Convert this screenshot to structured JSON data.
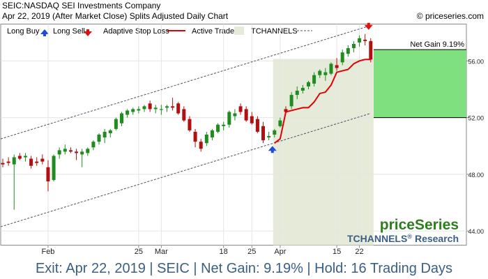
{
  "header": {
    "title": "SEIC:NASDAQ SEI Investments Company",
    "subtitle": "Apr 22, 2019 (After Market Close)  Splits Adjusted Daily Chart",
    "copyright": "© priceseries.com"
  },
  "legend": {
    "long_buy": "Long Buy",
    "long_sell": "Long Sell",
    "adaptive_stop": "Adaptive Stop Loss",
    "active_trade": "Active Trade",
    "tchannels": "TCHANNELS"
  },
  "branding": {
    "logo": "priceSeries",
    "research": "TCHANNELS",
    "research_suffix": "Research",
    "registered": "®"
  },
  "gain_box": {
    "label": "Net Gain 9.19%"
  },
  "footer": "Exit: Apr 22, 2019 | SEIC | Net Gain: 9.19% | Hold: 16 Trading Days",
  "colors": {
    "bull": "#1e8c1e",
    "bear": "#b01010",
    "stop": "#e00000",
    "buy_arrow": "#1a4fd6",
    "sell_arrow": "#e01010",
    "active_bg": "#e6ead9",
    "gain_fill": "#7ee07e",
    "channel": "#445566",
    "footer_text": "#3a5f86"
  },
  "chart_data": {
    "type": "candlestick",
    "ylim": [
      43.0,
      58.6
    ],
    "y_ticks": [
      "44.00",
      "48.00",
      "52.00",
      "56.00"
    ],
    "y_tick_values": [
      44,
      48,
      52,
      56
    ],
    "x_ticks": [
      {
        "label": "Feb",
        "index": 8
      },
      {
        "label": "25",
        "index": 24
      },
      {
        "label": "Mar",
        "index": 28
      },
      {
        "label": "18",
        "index": 39
      },
      {
        "label": "25",
        "index": 44
      },
      {
        "label": "Apr",
        "index": 49
      },
      {
        "label": "15",
        "index": 59
      },
      {
        "label": "22",
        "index": 63
      }
    ],
    "candles": [
      {
        "o": 48.8,
        "h": 49.1,
        "l": 48.5,
        "c": 48.7
      },
      {
        "o": 48.9,
        "h": 49.2,
        "l": 48.6,
        "c": 48.8
      },
      {
        "o": 48.7,
        "h": 49.4,
        "l": 45.5,
        "c": 49.2
      },
      {
        "o": 49.3,
        "h": 49.5,
        "l": 49.0,
        "c": 49.1
      },
      {
        "o": 49.2,
        "h": 49.5,
        "l": 48.9,
        "c": 49.3
      },
      {
        "o": 49.1,
        "h": 49.3,
        "l": 48.4,
        "c": 48.6
      },
      {
        "o": 48.9,
        "h": 49.2,
        "l": 48.6,
        "c": 48.8
      },
      {
        "o": 49.1,
        "h": 49.4,
        "l": 48.7,
        "c": 48.9
      },
      {
        "o": 48.5,
        "h": 49.0,
        "l": 46.8,
        "c": 47.5
      },
      {
        "o": 47.6,
        "h": 49.4,
        "l": 47.5,
        "c": 49.3
      },
      {
        "o": 49.4,
        "h": 49.9,
        "l": 49.1,
        "c": 49.7
      },
      {
        "o": 49.6,
        "h": 50.1,
        "l": 49.4,
        "c": 49.8
      },
      {
        "o": 49.7,
        "h": 49.9,
        "l": 49.5,
        "c": 49.6
      },
      {
        "o": 49.6,
        "h": 49.8,
        "l": 49.0,
        "c": 49.5
      },
      {
        "o": 49.4,
        "h": 49.8,
        "l": 48.5,
        "c": 49.6
      },
      {
        "o": 49.5,
        "h": 49.9,
        "l": 49.3,
        "c": 49.8
      },
      {
        "o": 49.9,
        "h": 50.4,
        "l": 49.7,
        "c": 50.3
      },
      {
        "o": 50.3,
        "h": 50.9,
        "l": 50.1,
        "c": 50.8
      },
      {
        "o": 50.6,
        "h": 51.2,
        "l": 50.2,
        "c": 51.0
      },
      {
        "o": 50.9,
        "h": 51.2,
        "l": 50.6,
        "c": 51.1
      },
      {
        "o": 51.2,
        "h": 52.0,
        "l": 51.1,
        "c": 51.9
      },
      {
        "o": 51.6,
        "h": 52.4,
        "l": 51.4,
        "c": 52.3
      },
      {
        "o": 52.2,
        "h": 52.6,
        "l": 52.0,
        "c": 52.5
      },
      {
        "o": 52.4,
        "h": 52.7,
        "l": 52.2,
        "c": 52.6
      },
      {
        "o": 52.5,
        "h": 52.8,
        "l": 52.3,
        "c": 52.6
      },
      {
        "o": 52.6,
        "h": 52.9,
        "l": 52.4,
        "c": 52.8
      },
      {
        "o": 53.0,
        "h": 53.2,
        "l": 52.4,
        "c": 52.6
      },
      {
        "o": 52.6,
        "h": 52.9,
        "l": 52.3,
        "c": 52.7
      },
      {
        "o": 52.6,
        "h": 52.9,
        "l": 52.2,
        "c": 52.6
      },
      {
        "o": 52.7,
        "h": 52.9,
        "l": 52.4,
        "c": 52.8
      },
      {
        "o": 52.8,
        "h": 53.4,
        "l": 52.5,
        "c": 52.7
      },
      {
        "o": 53.0,
        "h": 53.1,
        "l": 52.2,
        "c": 52.3
      },
      {
        "o": 52.6,
        "h": 52.8,
        "l": 51.7,
        "c": 51.8
      },
      {
        "o": 51.9,
        "h": 52.1,
        "l": 51.0,
        "c": 51.1
      },
      {
        "o": 51.0,
        "h": 51.2,
        "l": 49.9,
        "c": 50.3
      },
      {
        "o": 50.3,
        "h": 50.5,
        "l": 49.6,
        "c": 49.8
      },
      {
        "o": 50.2,
        "h": 51.0,
        "l": 50.0,
        "c": 50.8
      },
      {
        "o": 50.6,
        "h": 51.2,
        "l": 50.4,
        "c": 51.1
      },
      {
        "o": 51.0,
        "h": 51.6,
        "l": 50.9,
        "c": 51.5
      },
      {
        "o": 51.4,
        "h": 51.7,
        "l": 51.1,
        "c": 51.5
      },
      {
        "o": 51.5,
        "h": 52.5,
        "l": 51.3,
        "c": 52.4
      },
      {
        "o": 52.1,
        "h": 52.6,
        "l": 51.8,
        "c": 52.3
      },
      {
        "o": 52.8,
        "h": 53.0,
        "l": 52.2,
        "c": 52.4
      },
      {
        "o": 52.6,
        "h": 52.8,
        "l": 51.7,
        "c": 51.8
      },
      {
        "o": 52.1,
        "h": 52.4,
        "l": 51.5,
        "c": 51.6
      },
      {
        "o": 51.9,
        "h": 52.1,
        "l": 50.9,
        "c": 51.0
      },
      {
        "o": 51.4,
        "h": 51.7,
        "l": 50.2,
        "c": 50.4
      },
      {
        "o": 50.6,
        "h": 51.0,
        "l": 50.4,
        "c": 50.7
      },
      {
        "o": 50.8,
        "h": 51.2,
        "l": 50.6,
        "c": 51.1
      },
      {
        "o": 51.4,
        "h": 52.0,
        "l": 51.3,
        "c": 51.8
      },
      {
        "o": 52.6,
        "h": 52.8,
        "l": 52.3,
        "c": 52.4
      },
      {
        "o": 52.8,
        "h": 53.8,
        "l": 52.6,
        "c": 53.6
      },
      {
        "o": 53.6,
        "h": 54.2,
        "l": 53.3,
        "c": 53.9
      },
      {
        "o": 53.9,
        "h": 54.3,
        "l": 53.7,
        "c": 54.1
      },
      {
        "o": 54.2,
        "h": 54.6,
        "l": 54.0,
        "c": 54.5
      },
      {
        "o": 54.4,
        "h": 55.2,
        "l": 54.2,
        "c": 55.0
      },
      {
        "o": 55.0,
        "h": 55.4,
        "l": 54.8,
        "c": 55.3
      },
      {
        "o": 55.0,
        "h": 55.5,
        "l": 54.6,
        "c": 55.2
      },
      {
        "o": 55.1,
        "h": 55.9,
        "l": 55.0,
        "c": 55.8
      },
      {
        "o": 55.7,
        "h": 56.2,
        "l": 55.3,
        "c": 55.5
      },
      {
        "o": 55.9,
        "h": 56.8,
        "l": 55.7,
        "c": 56.6
      },
      {
        "o": 56.5,
        "h": 57.1,
        "l": 56.3,
        "c": 56.9
      },
      {
        "o": 56.9,
        "h": 57.4,
        "l": 56.6,
        "c": 57.2
      },
      {
        "o": 57.3,
        "h": 57.8,
        "l": 57.0,
        "c": 57.6
      },
      {
        "o": 57.5,
        "h": 57.9,
        "l": 57.1,
        "c": 57.4
      },
      {
        "o": 57.4,
        "h": 57.6,
        "l": 55.9,
        "c": 56.1
      }
    ],
    "stop_loss": [
      {
        "i": 48,
        "v": 50.2
      },
      {
        "i": 49,
        "v": 50.5
      },
      {
        "i": 50,
        "v": 52.4
      },
      {
        "i": 51,
        "v": 52.5
      },
      {
        "i": 52,
        "v": 52.6
      },
      {
        "i": 53,
        "v": 52.7
      },
      {
        "i": 54,
        "v": 52.7
      },
      {
        "i": 55,
        "v": 53.1
      },
      {
        "i": 56,
        "v": 53.7
      },
      {
        "i": 57,
        "v": 53.8
      },
      {
        "i": 58,
        "v": 54.3
      },
      {
        "i": 59,
        "v": 55.2
      },
      {
        "i": 60,
        "v": 55.3
      },
      {
        "i": 61,
        "v": 55.4
      },
      {
        "i": 62,
        "v": 55.8
      },
      {
        "i": 63,
        "v": 56.0
      },
      {
        "i": 64,
        "v": 56.1
      },
      {
        "i": 65,
        "v": 56.1
      }
    ],
    "channel_upper": [
      {
        "i": 0,
        "v": 50.5
      },
      {
        "i": 65,
        "v": 58.5
      }
    ],
    "channel_lower": [
      {
        "i": 0,
        "v": 44.3
      },
      {
        "i": 65,
        "v": 52.3
      }
    ],
    "active_trade": {
      "start": 48,
      "end": 65
    },
    "buy_signal": {
      "i": 48,
      "v": 50.2
    },
    "sell_signal": {
      "i": 65,
      "v": 57.9
    },
    "gain_box": {
      "low": 52.0,
      "high": 56.8
    }
  }
}
